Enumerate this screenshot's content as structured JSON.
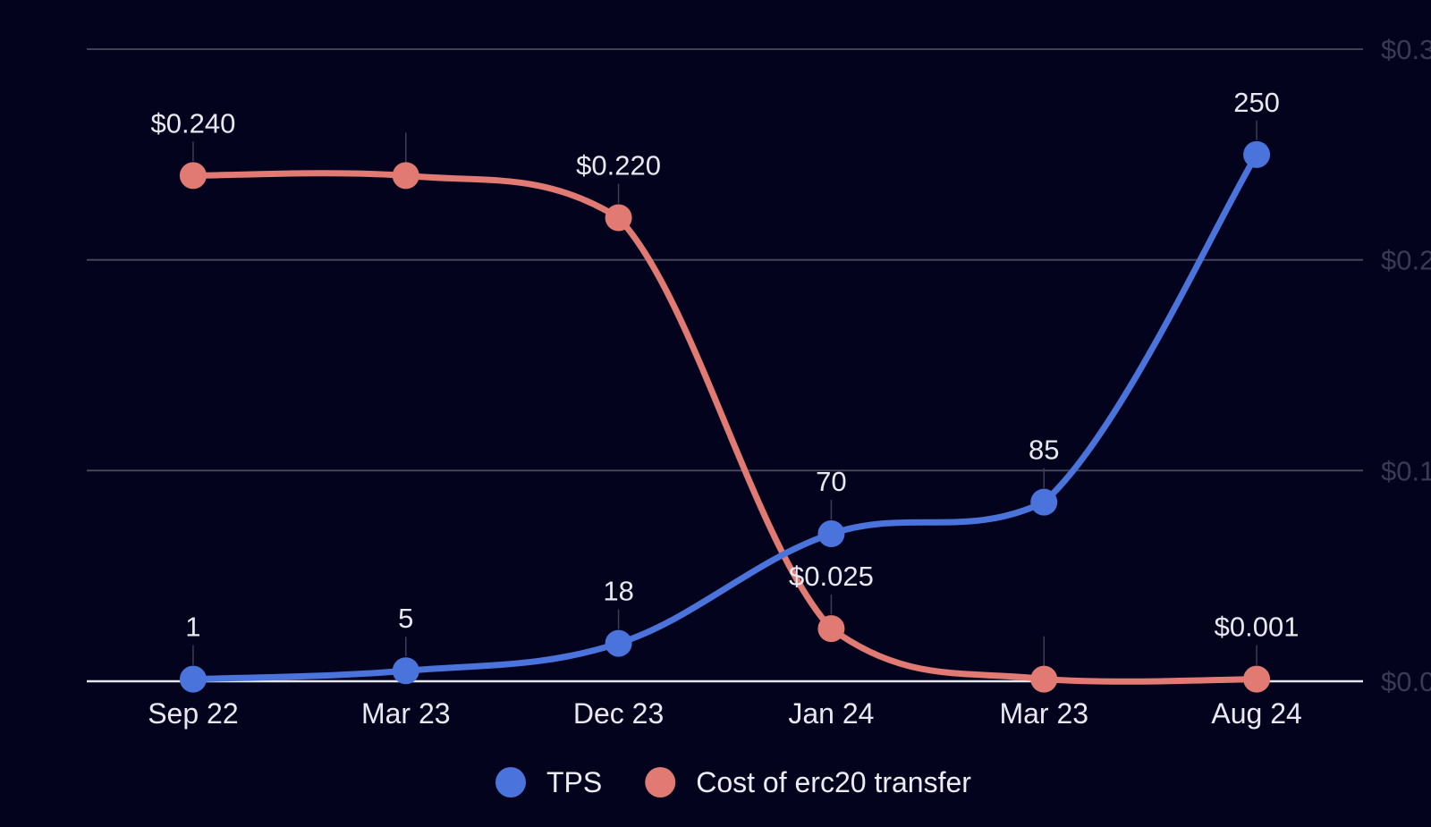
{
  "chart_data": {
    "type": "line",
    "categories": [
      "Sep 22",
      "Mar 23",
      "Dec 23",
      "Jan 24",
      "Mar 23",
      "Aug 24"
    ],
    "series": [
      {
        "name": "TPS",
        "values": [
          1,
          5,
          18,
          70,
          85,
          250
        ],
        "labels": [
          "1",
          "5",
          "18",
          "70",
          "85",
          "250"
        ],
        "color": "#4a74db",
        "axis": "left",
        "ylim": [
          0,
          300
        ]
      },
      {
        "name": "Cost of erc20 transfer",
        "values": [
          0.24,
          0.24,
          0.22,
          0.025,
          0.001,
          0.001
        ],
        "labels": [
          "$0.240",
          "",
          "$0.220",
          "$0.025",
          "",
          "$0.001"
        ],
        "color": "#e07a72",
        "axis": "right",
        "ylim": [
          0,
          0.3
        ]
      }
    ],
    "right_axis_ticks": [
      "$0.0",
      "$0.1",
      "$0.2",
      "$0.3"
    ],
    "grid": true,
    "legend_position": "bottom",
    "title": "",
    "xlabel": "",
    "ylabel": ""
  }
}
